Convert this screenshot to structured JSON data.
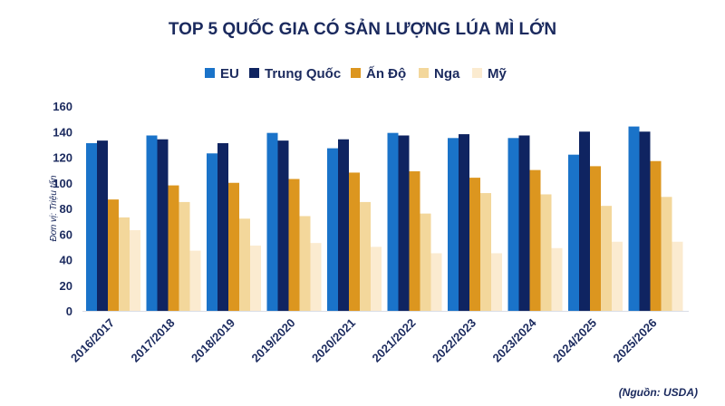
{
  "chart_data": {
    "type": "bar",
    "title": "TOP 5 QUỐC GIA CÓ SẢN LƯỢNG LÚA MÌ LỚN",
    "ylabel": "Đơn vị: Triệu tấn",
    "xlabel": "",
    "source": "(Nguồn: USDA)",
    "ylim": [
      0,
      160
    ],
    "yticks": [
      0,
      20,
      40,
      60,
      80,
      100,
      120,
      140,
      160
    ],
    "grid": false,
    "legend_position": "top",
    "categories": [
      "2016/2017",
      "2017/2018",
      "2018/2019",
      "2019/2020",
      "2020/2021",
      "2021/2022",
      "2022/2023",
      "2023/2024",
      "2024/2025",
      "2025/2026"
    ],
    "series": [
      {
        "name": "EU",
        "color": "#1a73c9",
        "values": [
          131,
          137,
          123,
          139,
          127,
          139,
          135,
          135,
          122,
          144
        ]
      },
      {
        "name": "Trung Quốc",
        "color": "#0f2461",
        "values": [
          133,
          134,
          131,
          133,
          134,
          137,
          138,
          137,
          140,
          140
        ]
      },
      {
        "name": "Ấn Độ",
        "color": "#dc961f",
        "values": [
          87,
          98,
          100,
          103,
          108,
          109,
          104,
          110,
          113,
          117
        ]
      },
      {
        "name": "Nga",
        "color": "#f3d79b",
        "values": [
          73,
          85,
          72,
          74,
          85,
          76,
          92,
          91,
          82,
          89
        ]
      },
      {
        "name": "Mỹ",
        "color": "#fbebd0",
        "values": [
          63,
          47,
          51,
          53,
          50,
          45,
          45,
          49,
          54,
          54
        ]
      }
    ]
  }
}
